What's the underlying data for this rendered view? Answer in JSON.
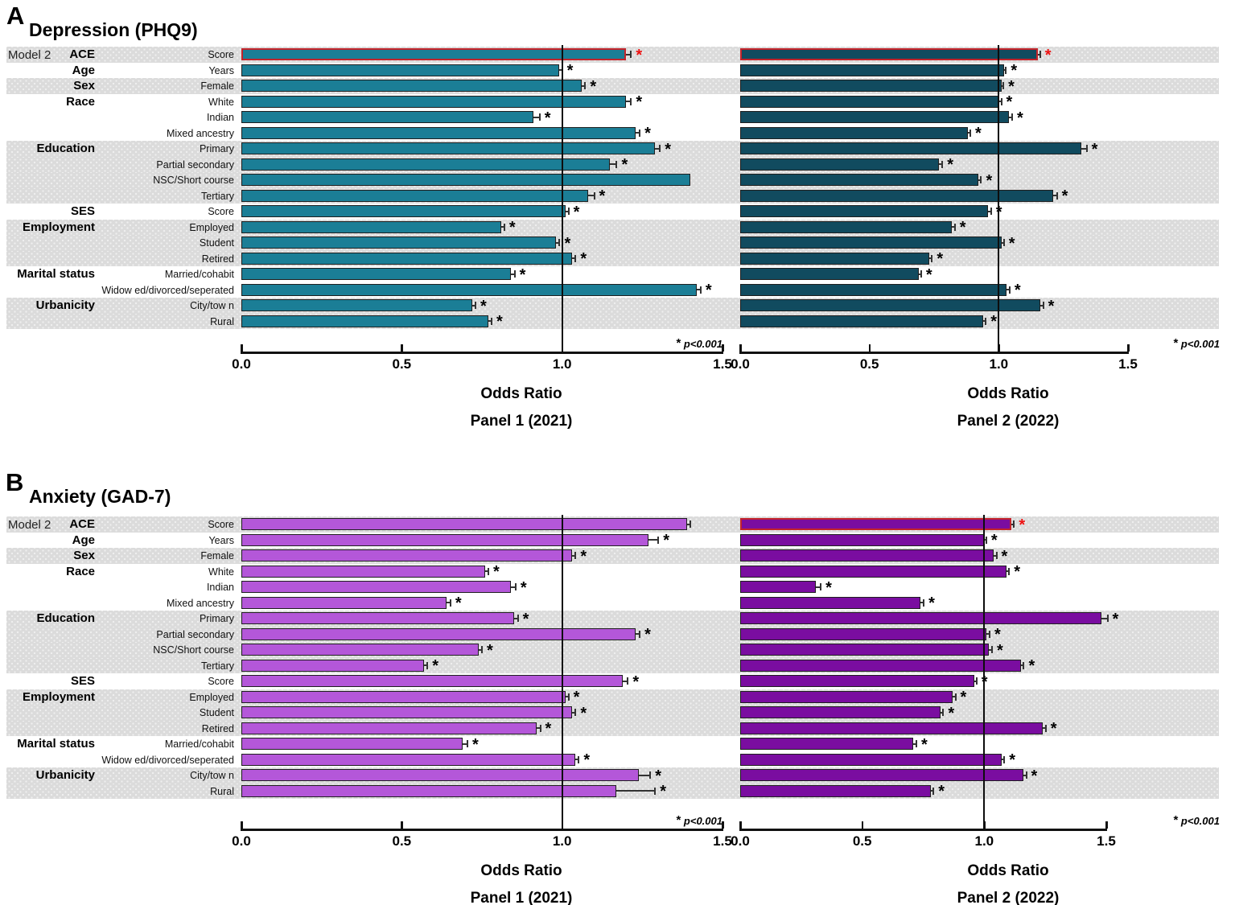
{
  "figure": {
    "panels": [
      {
        "letter": "A",
        "title": "Depression (PHQ9)",
        "model_label": "Model 2"
      },
      {
        "letter": "B",
        "title": "Anxiety (GAD-7)",
        "model_label": "Model 2"
      }
    ],
    "category_groups": [
      {
        "label": "ACE",
        "row": 0
      },
      {
        "label": "Age",
        "row": 1
      },
      {
        "label": "Sex",
        "row": 2
      },
      {
        "label": "Race",
        "row": 3
      },
      {
        "label": "Education",
        "row": 6
      },
      {
        "label": "SES",
        "row": 10
      },
      {
        "label": "Employment",
        "row": 11
      },
      {
        "label": "Marital status",
        "row": 14
      },
      {
        "label": "Urbanicity",
        "row": 16
      }
    ],
    "row_labels": [
      "Score",
      "Years",
      "Female",
      "White",
      "Indian",
      "Mixed ancestry",
      "Primary",
      "Partial secondary",
      "NSC/Short course",
      "Tertiary",
      "Score",
      "Employed",
      "Student",
      "Retired",
      "Married/cohabit",
      "Widow ed/divorced/seperated",
      "City/tow n",
      "Rural"
    ],
    "row_band_gray": [
      1,
      0,
      1,
      0,
      0,
      0,
      1,
      1,
      1,
      1,
      0,
      1,
      1,
      1,
      0,
      0,
      1,
      1
    ],
    "colors": {
      "band": "#dbdbdb",
      "axis": "#111111",
      "highlight_border": "#c3242b",
      "highlight_star": "#ee1111",
      "error_bar": "#333333"
    }
  },
  "chart_data": [
    {
      "type": "bar",
      "orientation": "horizontal",
      "panel": "A",
      "title": "Depression (PHQ9)",
      "caption": "Panel 1 (2021)",
      "xlabel": "Odds Ratio",
      "note_star": "*",
      "note_text": "p<0.001",
      "xlim": [
        0,
        1.5
      ],
      "xticks": [
        "0.0",
        "0.5",
        "1.0",
        "1.5"
      ],
      "refline_at": 1.0,
      "bar_color": "#1b7e96",
      "categories": [
        "Score",
        "Years",
        "Female",
        "White",
        "Indian",
        "Mixed ancestry",
        "Primary",
        "Partial secondary",
        "NSC/Short course",
        "Tertiary",
        "Score",
        "Employed",
        "Student",
        "Retired",
        "Married/cohabit",
        "Widow ed/divorced/seperated",
        "City/tow n",
        "Rural"
      ],
      "values": [
        1.2,
        0.99,
        1.06,
        1.2,
        0.91,
        1.23,
        1.29,
        1.15,
        1.4,
        1.08,
        1.01,
        0.81,
        0.98,
        1.03,
        0.84,
        1.42,
        0.72,
        0.77
      ],
      "errors": [
        0.015,
        0.01,
        0.012,
        0.015,
        0.02,
        0.012,
        0.015,
        0.02,
        0,
        0.02,
        0.01,
        0.01,
        0.012,
        0.012,
        0.012,
        0.012,
        0.01,
        0.01
      ],
      "sig": [
        "red",
        "*",
        "*",
        "*",
        "*",
        "*",
        "*",
        "*",
        "",
        "*",
        "*",
        "*",
        "*",
        "*",
        "*",
        "*",
        "*",
        "*"
      ]
    },
    {
      "type": "bar",
      "orientation": "horizontal",
      "panel": "A",
      "title": "Depression (PHQ9)",
      "caption": "Panel 2 (2022)",
      "xlabel": "Odds Ratio",
      "note_star": "*",
      "note_text": "p<0.001",
      "xlim": [
        0,
        1.5
      ],
      "xticks": [
        "0.0",
        "0.5",
        "1.0",
        "1.5"
      ],
      "refline_at": 1.0,
      "bar_color": "#114b5f",
      "categories": [
        "Score",
        "Years",
        "Female",
        "White",
        "Indian",
        "Mixed ancestry",
        "Primary",
        "Partial secondary",
        "NSC/Short course",
        "Tertiary",
        "Score",
        "Employed",
        "Student",
        "Retired",
        "Married/cohabit",
        "Widow ed/divorced/seperated",
        "City/tow n",
        "Rural"
      ],
      "values": [
        1.15,
        1.02,
        1.01,
        1.0,
        1.04,
        0.88,
        1.32,
        0.77,
        0.92,
        1.21,
        0.96,
        0.82,
        1.01,
        0.73,
        0.69,
        1.03,
        1.16,
        0.94
      ],
      "errors": [
        0.01,
        0.008,
        0.008,
        0.01,
        0.012,
        0.01,
        0.02,
        0.012,
        0.012,
        0.015,
        0.01,
        0.01,
        0.01,
        0.012,
        0.01,
        0.012,
        0.012,
        0.01
      ],
      "sig": [
        "red",
        "*",
        "*",
        "*",
        "*",
        "*",
        "*",
        "*",
        "*",
        "*",
        "*",
        "*",
        "*",
        "*",
        "*",
        "*",
        "*",
        "*"
      ]
    },
    {
      "type": "bar",
      "orientation": "horizontal",
      "panel": "B",
      "title": "Anxiety (GAD-7)",
      "caption": "Panel 1 (2021)",
      "xlabel": "Odds Ratio",
      "note_star": "*",
      "note_text": "p<0.001",
      "xlim": [
        0,
        1.5
      ],
      "xticks": [
        "0.0",
        "0.5",
        "1.0",
        "1.5"
      ],
      "refline_at": 1.0,
      "bar_color": "#b457d9",
      "categories": [
        "Score",
        "Years",
        "Female",
        "White",
        "Indian",
        "Mixed ancestry",
        "Primary",
        "Partial secondary",
        "NSC/Short course",
        "Tertiary",
        "Score",
        "Employed",
        "Student",
        "Retired",
        "Married/cohabit",
        "Widow ed/divorced/seperated",
        "City/tow n",
        "Rural"
      ],
      "values": [
        1.39,
        1.27,
        1.03,
        0.76,
        0.84,
        0.64,
        0.85,
        1.23,
        0.74,
        0.57,
        1.19,
        1.01,
        1.03,
        0.92,
        0.69,
        1.04,
        1.24,
        1.17
      ],
      "errors": [
        0.01,
        0.03,
        0.012,
        0.01,
        0.015,
        0.012,
        0.012,
        0.012,
        0.01,
        0.01,
        0.015,
        0.01,
        0.012,
        0.012,
        0.015,
        0.012,
        0.035,
        0.12
      ],
      "sig": [
        "",
        "*",
        "*",
        "*",
        "*",
        "*",
        "*",
        "*",
        "*",
        "*",
        "*",
        "*",
        "*",
        "*",
        "*",
        "*",
        "*",
        "*"
      ]
    },
    {
      "type": "bar",
      "orientation": "horizontal",
      "panel": "B",
      "title": "Anxiety (GAD-7)",
      "caption": "Panel 2 (2022)",
      "xlabel": "Odds Ratio",
      "note_star": "*",
      "note_text": "p<0.001",
      "xlim": [
        0,
        1.5
      ],
      "xticks": [
        "0.0",
        "0.5",
        "1.0",
        "1.5"
      ],
      "refline_at": 1.0,
      "bar_color": "#7a0da0",
      "categories": [
        "Score",
        "Years",
        "Female",
        "White",
        "Indian",
        "Mixed ancestry",
        "Primary",
        "Partial secondary",
        "NSC/Short course",
        "Tertiary",
        "Score",
        "Employed",
        "Student",
        "Retired",
        "Married/cohabit",
        "Widow ed/divorced/seperated",
        "City/tow n",
        "Rural"
      ],
      "values": [
        1.11,
        1.0,
        1.04,
        1.09,
        0.31,
        0.74,
        1.48,
        1.01,
        1.02,
        1.15,
        0.96,
        0.87,
        0.82,
        1.24,
        0.71,
        1.07,
        1.16,
        0.78
      ],
      "errors": [
        0.012,
        0.005,
        0.01,
        0.012,
        0.02,
        0.012,
        0.025,
        0.012,
        0.012,
        0.012,
        0.008,
        0.012,
        0.012,
        0.012,
        0.012,
        0.012,
        0.012,
        0.012
      ],
      "sig": [
        "red",
        "*",
        "*",
        "*",
        "*",
        "*",
        "*",
        "*",
        "*",
        "*",
        "*",
        "*",
        "*",
        "*",
        "*",
        "*",
        "*",
        "*"
      ]
    }
  ]
}
